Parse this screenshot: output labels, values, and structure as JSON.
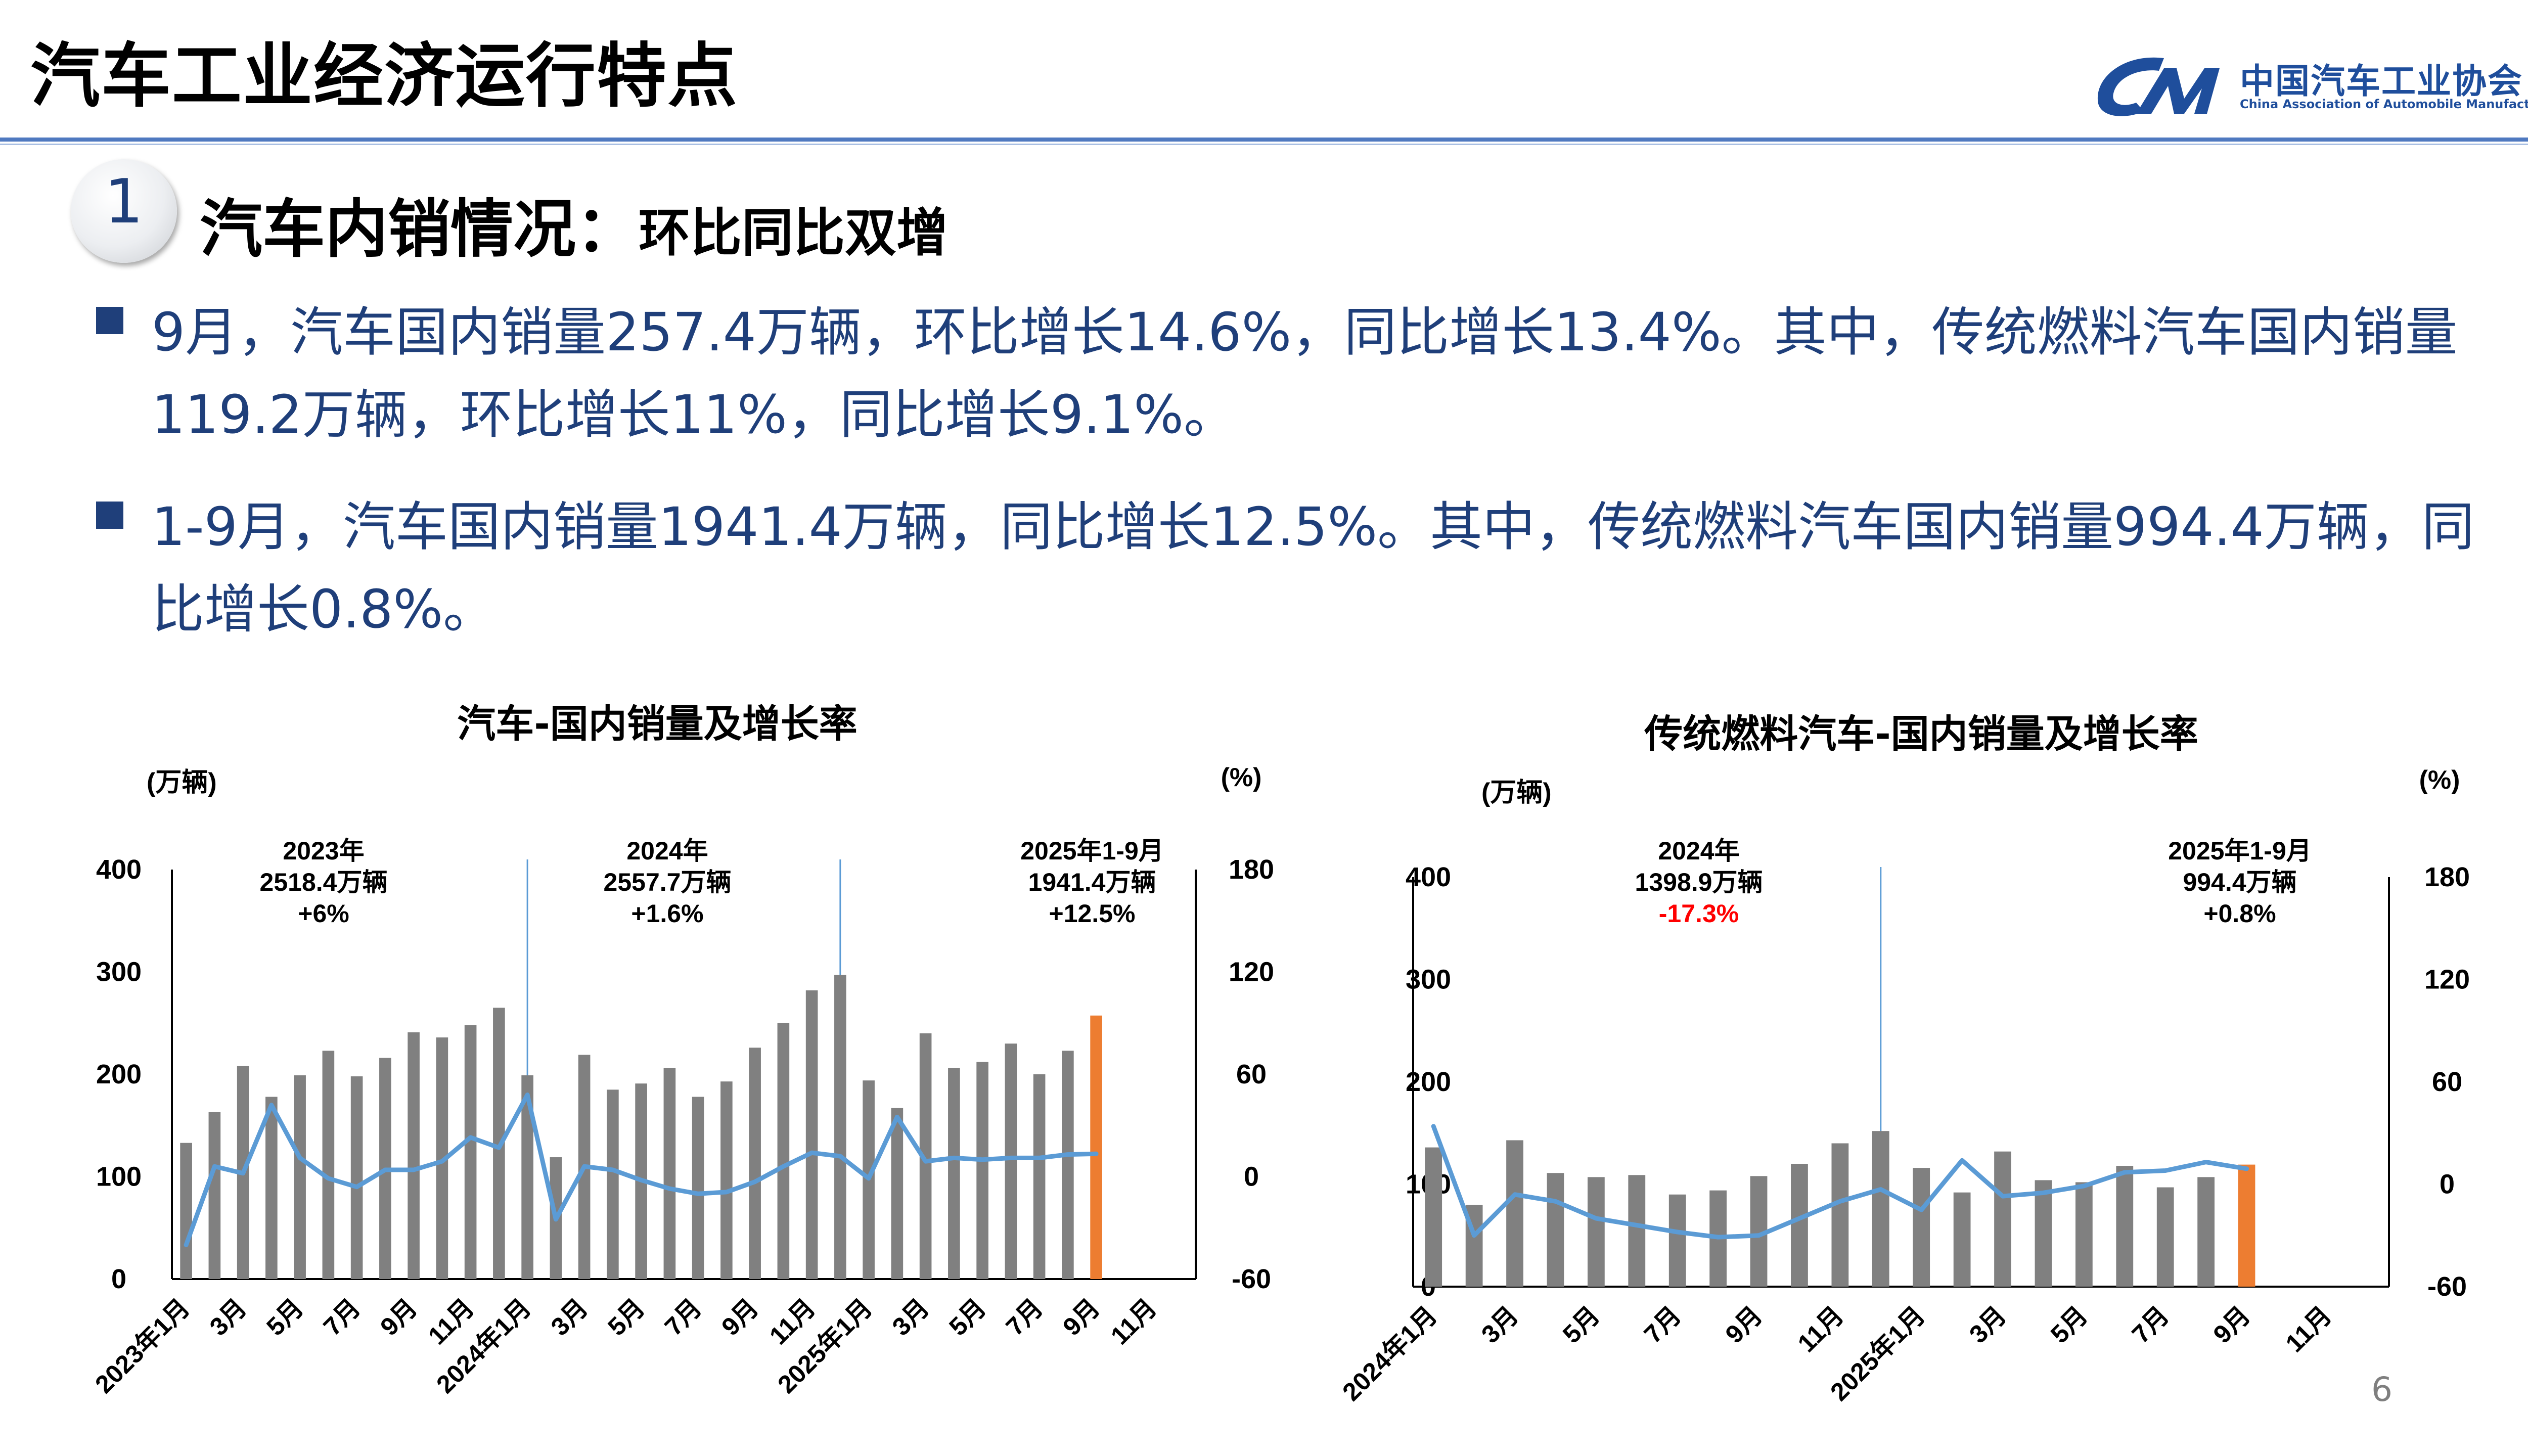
{
  "header": {
    "title": "汽车工业经济运行特点",
    "logo_cn": "中国汽车工业协会",
    "logo_en": "China Association of Automobile Manufacturers"
  },
  "section": {
    "number": "1",
    "title": "汽车内销情况：",
    "subtitle": "环比同比双增"
  },
  "bullets": [
    {
      "line1": "9月，汽车国内销量257.4万辆，环比增长14.6%，同比增长13.4%。其中，传统燃料汽车国内销量",
      "line2": "119.2万辆，环比增长11%，同比增长9.1%。"
    },
    {
      "line1": "1-9月，汽车国内销量1941.4万辆，同比增长12.5%。其中，传统燃料汽车国内销量994.4万辆，同",
      "line2": "比增长0.8%。"
    }
  ],
  "page_number": "6",
  "colors": {
    "bar": "#808080",
    "bar_highlight": "#ed7d31",
    "line": "#5b9bd5",
    "negative_text": "#ff0000",
    "title_rule": "#4f79c0",
    "bullet_text": "#1f3f7a"
  },
  "chart_data": [
    {
      "type": "bar",
      "title": "汽车-国内销量及增长率",
      "ylabel": "(万辆)",
      "y2label": "(%)",
      "ylim": [
        0,
        400
      ],
      "y2lim": [
        -60,
        180
      ],
      "yticks": [
        "0",
        "100",
        "200",
        "300",
        "400"
      ],
      "y2ticks": [
        "-60",
        "0",
        "60",
        "120",
        "180"
      ],
      "x_tick_labels": [
        "2023年1月",
        "3月",
        "5月",
        "7月",
        "9月",
        "11月",
        "2024年1月",
        "3月",
        "5月",
        "7月",
        "9月",
        "11月",
        "2025年1月",
        "3月",
        "5月",
        "7月",
        "9月",
        "11月"
      ],
      "annotations": [
        {
          "lines": [
            "2023年",
            "2518.4万辆",
            "+6%"
          ]
        },
        {
          "lines": [
            "2024年",
            "2557.7万辆",
            "+1.6%"
          ]
        },
        {
          "lines": [
            "2025年1-9月",
            "1941.4万辆",
            "+12.5%"
          ]
        }
      ],
      "series": [
        {
          "name": "国内销量",
          "values": [
            133,
            163,
            208,
            178,
            199,
            223,
            198,
            216,
            241,
            236,
            248,
            265,
            199,
            119,
            219,
            185,
            191,
            206,
            178,
            193,
            226,
            250,
            282,
            297,
            194,
            167,
            240,
            206,
            212,
            230,
            200,
            223,
            257.4,
            null,
            null,
            null
          ]
        },
        {
          "name": "增长率",
          "values": [
            -40,
            6,
            2,
            42,
            11,
            -1,
            -6,
            4,
            4,
            9,
            23,
            17,
            48,
            -25,
            6,
            4,
            -2,
            -7,
            -10,
            -9,
            -3,
            6,
            14,
            12,
            -1,
            35,
            9,
            11,
            10,
            11,
            11,
            13,
            13.4,
            null,
            null,
            null
          ]
        }
      ],
      "highlight_index": 32
    },
    {
      "type": "bar",
      "title": "传统燃料汽车-国内销量及增长率",
      "ylabel": "(万辆)",
      "y2label": "(%)",
      "ylim": [
        0,
        400
      ],
      "y2lim": [
        -60,
        180
      ],
      "yticks": [
        "0",
        "100",
        "200",
        "300",
        "400"
      ],
      "y2ticks": [
        "-60",
        "0",
        "60",
        "120",
        "180"
      ],
      "x_tick_labels": [
        "2024年1月",
        "3月",
        "5月",
        "7月",
        "9月",
        "11月",
        "2025年1月",
        "3月",
        "5月",
        "7月",
        "9月",
        "11月"
      ],
      "annotations": [
        {
          "lines": [
            "2024年",
            "1398.9万辆",
            "-17.3%"
          ],
          "negative_line": 2
        },
        {
          "lines": [
            "2025年1-9月",
            "994.4万辆",
            "+0.8%"
          ]
        }
      ],
      "series": [
        {
          "name": "国内销量",
          "values": [
            136,
            80,
            143,
            111,
            107,
            109,
            90,
            94,
            108,
            120,
            140,
            152,
            116,
            92,
            132,
            104,
            102,
            118,
            97,
            107,
            119.2,
            null,
            null,
            null
          ]
        },
        {
          "name": "增长率",
          "values": [
            34,
            -30,
            -6,
            -10,
            -20,
            -24,
            -28,
            -31,
            -30,
            -20,
            -10,
            -3,
            -15,
            14,
            -7,
            -5,
            -1,
            7,
            8,
            13,
            9.1,
            null,
            null,
            null
          ]
        }
      ],
      "highlight_index": 20
    }
  ]
}
